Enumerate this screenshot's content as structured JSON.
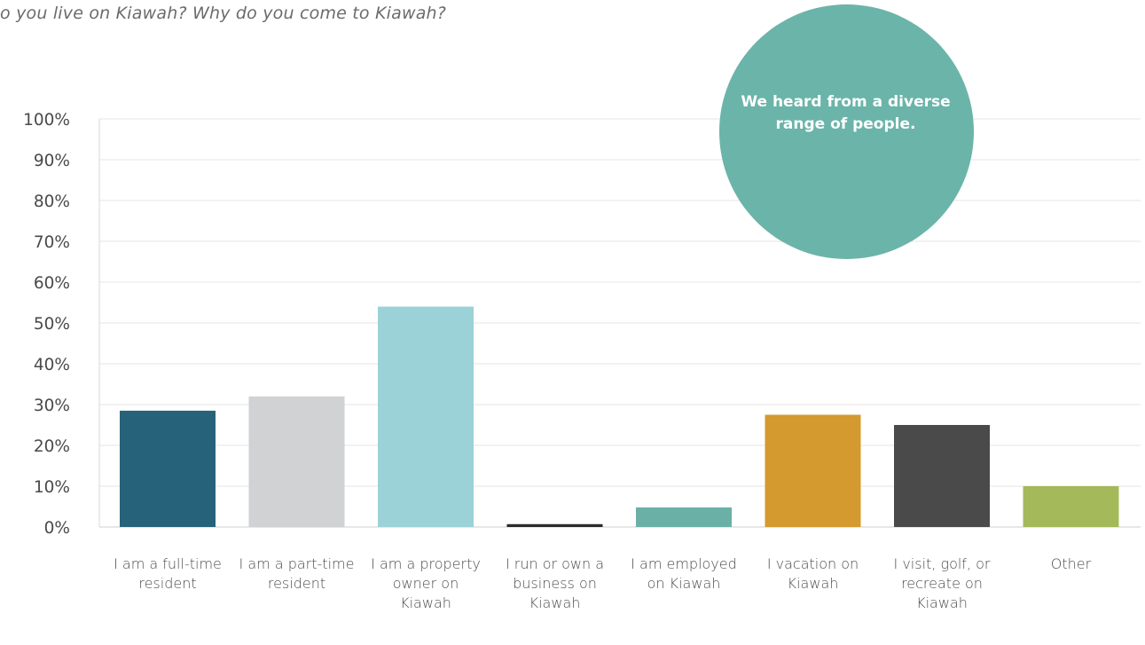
{
  "question": "o you live on Kiawah? Why do you come to Kiawah?",
  "callout": {
    "text": "We heard from a diverse range of people.",
    "color": "#6bb4a9"
  },
  "chart_data": {
    "type": "bar",
    "categories": [
      "I am a full-time resident",
      "I am a part-time resident",
      "I am a property owner on Kiawah",
      "I run or own a business on Kiawah",
      "I am employed on Kiawah",
      "I vacation on Kiawah",
      "I visit, golf, or recreate on Kiawah",
      "Other"
    ],
    "values": [
      28.5,
      32,
      54,
      0.7,
      4.8,
      27.5,
      25,
      10
    ],
    "colors": [
      "#26637a",
      "#d1d2d4",
      "#9bd2d7",
      "#2b2b2b",
      "#6bb0a6",
      "#d4992f",
      "#4a4a4a",
      "#a4b95a"
    ],
    "ylim": [
      0,
      100
    ],
    "yticks": [
      "0%",
      "10%",
      "20%",
      "30%",
      "40%",
      "50%",
      "60%",
      "70%",
      "80%",
      "90%",
      "100%"
    ],
    "grid": true,
    "title": "",
    "xlabel": "",
    "ylabel": ""
  }
}
